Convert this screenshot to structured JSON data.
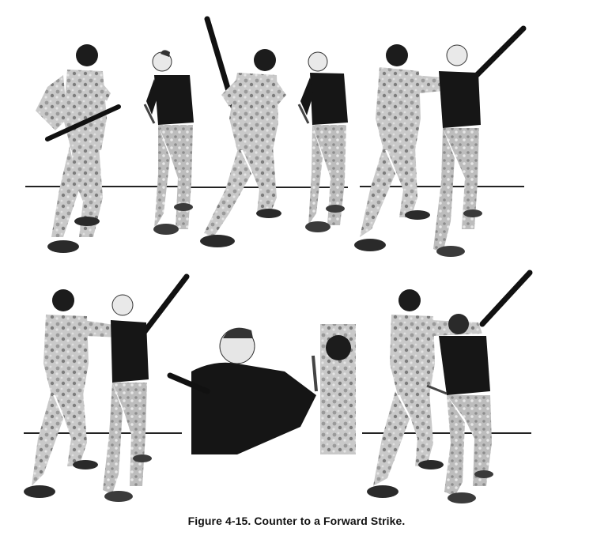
{
  "figure": {
    "caption": "Figure 4-15. Counter to a Forward Strike.",
    "panels": [
      {
        "id": 1,
        "description": "attacker raises stick, defender with knife in guard stance"
      },
      {
        "id": 2,
        "description": "attacker swings stick upward, defender steps forward"
      },
      {
        "id": 3,
        "description": "defender closes distance and jams the strike"
      },
      {
        "id": 4,
        "description": "defender controls striking arm"
      },
      {
        "id": 5,
        "description": "close-up of knife counter"
      },
      {
        "id": 6,
        "description": "defender finishes counter with knife"
      }
    ]
  },
  "colors": {
    "ink": "#111111",
    "camo_light": "#cfcfcf",
    "camo_dark": "#8a8a8a",
    "shirt": "#1a1a1a",
    "ground_line": "#222222"
  }
}
